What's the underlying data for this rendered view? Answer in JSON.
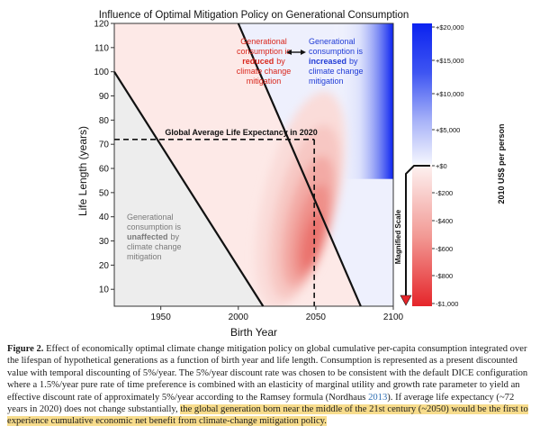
{
  "chart_data": {
    "type": "heatmap",
    "title": "Influence of Optimal Mitigation Policy on Generational Consumption",
    "xlabel": "Birth Year",
    "ylabel": "Life Length (years)",
    "xlim": [
      1920,
      2100
    ],
    "ylim": [
      3,
      120
    ],
    "xticks": [
      "1950",
      "2000",
      "2050",
      "2100"
    ],
    "yticks": [
      "10",
      "20",
      "30",
      "40",
      "50",
      "60",
      "70",
      "80",
      "90",
      "100",
      "110",
      "120"
    ],
    "colorbar": {
      "label": "2010 US$ per person",
      "scale_label": "Magnified Scale",
      "positive_ticks": [
        "+$20,000",
        "+$15,000",
        "+$10,000",
        "+$5,000",
        "+$0"
      ],
      "negative_ticks": [
        "-$200",
        "-$400",
        "-$600",
        "-$800",
        "-$1,000"
      ],
      "positive_color": "#0b22f0",
      "negative_color": "#e5252a"
    },
    "boundaries": {
      "unaffected_line": [
        [
          1920,
          100
        ],
        [
          2016,
          3
        ]
      ],
      "breakeven_line": [
        [
          2000,
          120
        ],
        [
          2079,
          3
        ]
      ]
    },
    "life_expectancy": {
      "label": "Global Average Life Expectancy in 2020",
      "value": 72,
      "birth_year_crossing": 2049
    },
    "regions": {
      "reduced": {
        "text_1": "Generational",
        "text_2": "consumption is",
        "emph": "reduced",
        "text_3": "by",
        "text_4": "climate change",
        "text_5": "mitigation",
        "color": "#d9261c"
      },
      "increased": {
        "text_1": "Generational",
        "text_2": "consumption is",
        "emph": "increased",
        "text_3": "by",
        "text_4": "climate change",
        "text_5": "mitigation",
        "color": "#1f3ad6"
      },
      "unaffected": {
        "text_1": "Generational",
        "text_2": "consumption is",
        "emph": "unaffected",
        "text_3": "by",
        "text_4": "climate change",
        "text_5": "mitigation",
        "color": "#7a7a7a"
      }
    }
  },
  "caption": {
    "label": "Figure 2.",
    "part1": "Effect of economically optimal climate change mitigation policy on global cumulative per-capita consumption integrated over the lifespan of hypothetical generations as a function of birth year and life length. Consumption is represented as a present discounted value with temporal discounting of 5%/year. The 5%/year discount rate was chosen to be consistent with the default DICE configuration where a 1.5%/year pure rate of time preference is combined with an elasticity of marginal utility and growth rate parameter to yield an effective discount rate of approximately 5%/year according to the Ramsey formula (Nordhaus",
    "cite_year": "2013",
    "part2": "). If average life expectancy (~72 years in 2020) does not change substantially,",
    "highlight": "the global generation born near the middle of the 21st century (~2050) would be the first to experience cumulative economic net benefit from climate-change mitigation policy."
  }
}
